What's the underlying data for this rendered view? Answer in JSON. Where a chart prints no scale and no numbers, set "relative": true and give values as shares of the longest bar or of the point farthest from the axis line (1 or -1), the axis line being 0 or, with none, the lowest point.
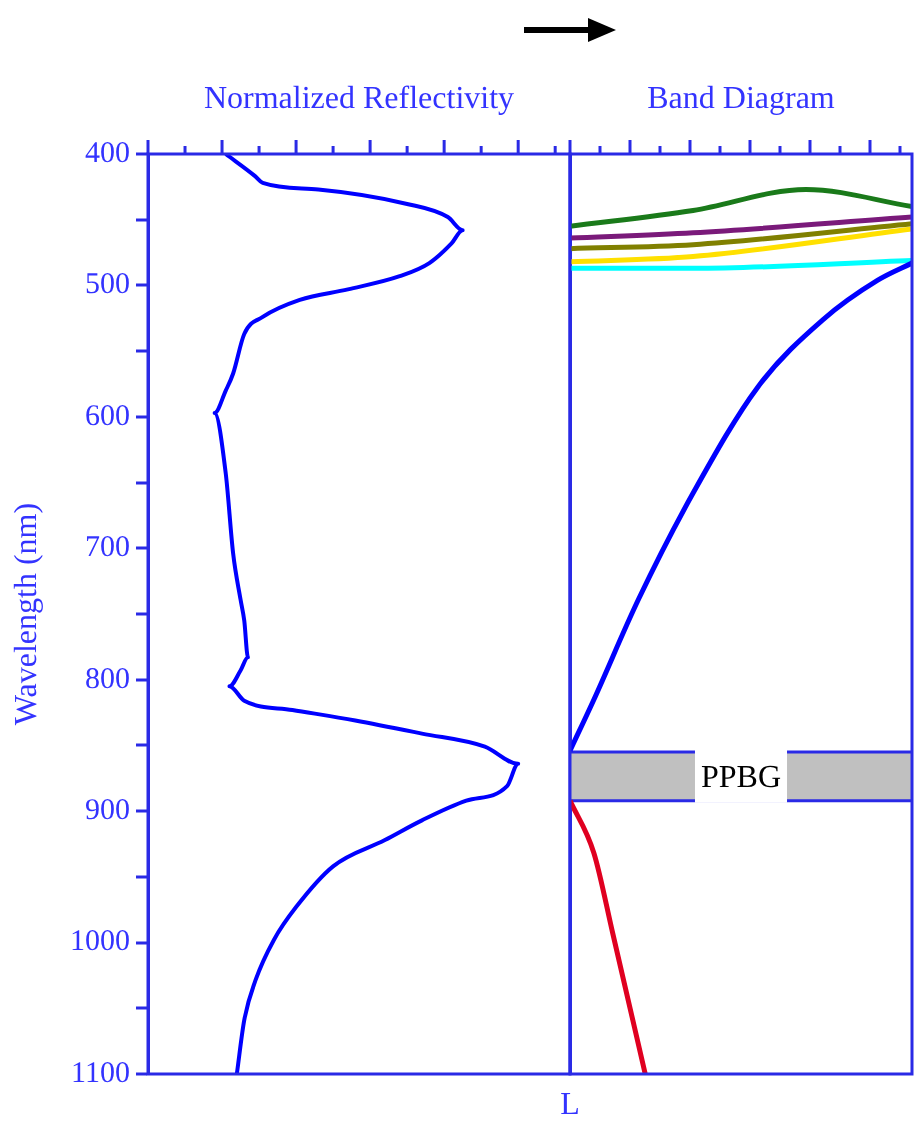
{
  "chart_data": [
    {
      "type": "line",
      "orientation": "horizontal",
      "xlabel": "Normalized Reflectivity",
      "ylabel": "Wavelength (nm)",
      "relative": true,
      "ylim": [
        1100,
        400
      ],
      "yticks": [
        400,
        {
          "value": 450,
          "label": null
        },
        500,
        {
          "value": 550,
          "label": null
        },
        600,
        {
          "value": 650,
          "label": null
        },
        700,
        {
          "value": 750,
          "label": null
        },
        800,
        {
          "value": 850,
          "label": null
        },
        900,
        {
          "value": 950,
          "label": null
        },
        1000,
        {
          "value": 1050,
          "label": null
        },
        1100
      ],
      "tick_labels": "y",
      "grid": false,
      "series": [
        {
          "color": "#0000ff",
          "x": [
            400,
            417,
            422,
            427,
            438,
            448,
            458,
            468,
            483,
            493,
            503,
            511,
            524,
            537,
            567,
            580,
            597,
            643,
            704,
            739,
            755,
            783,
            793,
            805,
            816,
            823,
            831,
            841,
            851,
            864,
            881,
            892,
            907,
            922,
            942,
            973,
            998,
            1029,
            1059,
            1100
          ],
          "values": [
            0.21,
            0.29,
            0.31,
            0.46,
            0.7,
            0.81,
            0.85,
            0.82,
            0.76,
            0.68,
            0.54,
            0.41,
            0.31,
            0.26,
            0.23,
            0.21,
            0.18,
            0.21,
            0.23,
            0.25,
            0.26,
            0.27,
            0.25,
            0.22,
            0.26,
            0.39,
            0.56,
            0.74,
            0.91,
            1.0,
            0.97,
            0.86,
            0.74,
            0.64,
            0.5,
            0.4,
            0.34,
            0.29,
            0.26,
            0.24
          ]
        }
      ]
    },
    {
      "type": "line",
      "orientation": "horizontal",
      "xlabel": "Band Diagram",
      "relative": true,
      "ylim": [
        1100,
        400
      ],
      "tick_labels": false,
      "grid": false,
      "annotations": [
        "L"
      ],
      "bands": [
        {
          "axis": "y",
          "from": 855,
          "to": 892,
          "label": "PPBG",
          "color": "#c0c0c0"
        }
      ],
      "ref_lines": [
        {
          "axis": "y",
          "value": 855,
          "color": "#2a2ae6"
        },
        {
          "axis": "y",
          "value": 892,
          "color": "#2a2ae6"
        }
      ],
      "series": [
        {
          "color": "#0000ff",
          "x": [
            854,
            815,
            739,
            658,
            577,
            526,
            496,
            483
          ],
          "values": [
            0,
            0.07,
            0.2,
            0.36,
            0.55,
            0.74,
            0.9,
            1.0
          ]
        },
        {
          "color": "#e00020",
          "x": [
            892,
            932,
            993,
            1100
          ],
          "values": [
            0,
            0.07,
            0.125,
            0.22
          ]
        },
        {
          "color": "#1a7a1a",
          "x": [
            455,
            443,
            427,
            440
          ],
          "values": [
            0,
            0.36,
            0.69,
            1.0
          ]
        },
        {
          "color": "#7a1a7a",
          "x": [
            464,
            460,
            448
          ],
          "values": [
            0,
            0.36,
            1.0
          ]
        },
        {
          "color": "#808000",
          "x": [
            472,
            469,
            453
          ],
          "values": [
            0,
            0.36,
            1.0
          ]
        },
        {
          "color": "#ffe000",
          "x": [
            482,
            478,
            457
          ],
          "values": [
            0,
            0.36,
            1.0
          ]
        },
        {
          "color": "#00ffff",
          "x": [
            487,
            487,
            481
          ],
          "values": [
            0,
            0.36,
            1.0
          ]
        }
      ]
    }
  ]
}
